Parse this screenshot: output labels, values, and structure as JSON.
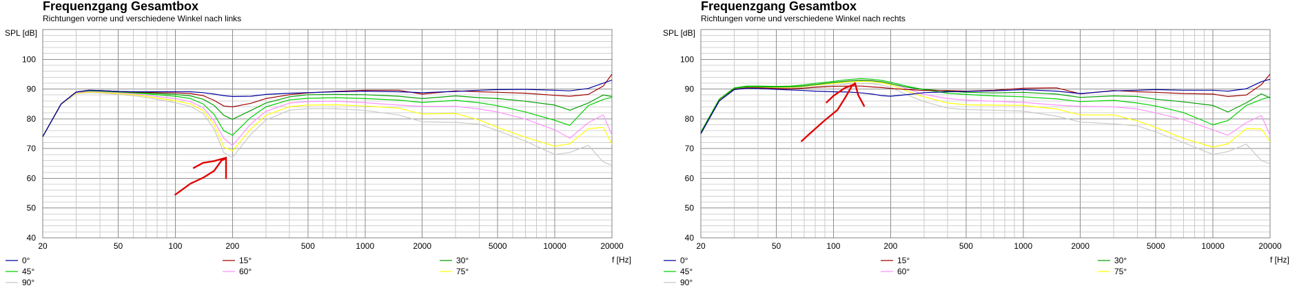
{
  "chart_data": [
    {
      "type": "line",
      "title": "Frequenzgang Gesamtbox",
      "subtitle": "Richtungen vorne und verschiedene Winkel nach links",
      "ylabel": "SPL [dB]",
      "xlabel": "f [Hz]",
      "xscale": "log",
      "xlim": [
        20,
        20000
      ],
      "ylim": [
        40,
        110
      ],
      "xticks": [
        20,
        50,
        100,
        200,
        500,
        1000,
        2000,
        5000,
        10000,
        20000
      ],
      "yticks": [
        40,
        50,
        60,
        70,
        80,
        90,
        100
      ],
      "grid": true,
      "legend_position": "bottom",
      "x": [
        20,
        25,
        30,
        35,
        40,
        50,
        60,
        70,
        80,
        100,
        120,
        140,
        160,
        180,
        200,
        250,
        300,
        400,
        500,
        700,
        1000,
        1500,
        2000,
        3000,
        4000,
        5000,
        7000,
        10000,
        12000,
        15000,
        18000,
        20000
      ],
      "series": [
        {
          "name": "0°",
          "color": "#0000a0",
          "values": [
            74,
            85,
            89,
            89.6,
            89.5,
            89.2,
            89.1,
            89.1,
            89.1,
            89.1,
            89.1,
            88.8,
            88.3,
            87.8,
            87.5,
            87.6,
            88.2,
            88.6,
            88.8,
            89.1,
            89.3,
            89.1,
            88.8,
            89.2,
            89.6,
            89.8,
            89.9,
            89.6,
            89.4,
            90.2,
            92,
            93
          ]
        },
        {
          "name": "15°",
          "color": "#a00000",
          "values": [
            74,
            85,
            89,
            89.6,
            89.5,
            89.2,
            89,
            88.9,
            88.8,
            88.7,
            88.5,
            87.8,
            86.2,
            84.3,
            84,
            85.2,
            86.8,
            88.1,
            88.7,
            89.2,
            89.6,
            89.6,
            88.3,
            89.4,
            89.1,
            88.9,
            88.6,
            87.9,
            87.6,
            88.2,
            91,
            95
          ]
        },
        {
          "name": "30°",
          "color": "#00a000",
          "values": [
            74,
            85,
            89,
            89.5,
            89.4,
            89.1,
            88.9,
            88.7,
            88.5,
            88.2,
            87.7,
            86.6,
            84.5,
            81.2,
            79.8,
            82.8,
            85.3,
            87.4,
            88.1,
            88.2,
            88.1,
            87.6,
            86.8,
            87.7,
            87.1,
            86.8,
            85.9,
            84.6,
            82.9,
            85.3,
            88,
            87.5
          ]
        },
        {
          "name": "45°",
          "color": "#00d000",
          "values": [
            74,
            85,
            89,
            89.4,
            89.3,
            89,
            88.7,
            88.4,
            88.1,
            87.6,
            86.8,
            85,
            81.5,
            76,
            74.5,
            80.5,
            84,
            86.4,
            86.9,
            87.1,
            86.8,
            86.3,
            85.5,
            86.2,
            85.4,
            84.4,
            82.3,
            79.5,
            77.8,
            84.4,
            86.5,
            87.2
          ]
        },
        {
          "name": "60°",
          "color": "#ff90ff",
          "values": [
            74,
            85,
            88.8,
            89.2,
            89.1,
            88.8,
            88.4,
            88,
            87.5,
            86.8,
            85.8,
            83.8,
            79.3,
            73.5,
            71,
            78.3,
            82.5,
            85.3,
            85.8,
            85.9,
            85.4,
            84.6,
            84.2,
            84.2,
            83.3,
            82.3,
            79.9,
            76.3,
            73.5,
            78.7,
            81.3,
            74.5
          ]
        },
        {
          "name": "75°",
          "color": "#ffff00",
          "values": [
            74,
            85,
            88.6,
            89,
            88.9,
            88.5,
            88.1,
            87.6,
            87,
            86.1,
            85,
            82.8,
            78,
            70.5,
            69.2,
            76.6,
            81.2,
            84.1,
            84.6,
            84.7,
            84.3,
            83.6,
            81.6,
            81.8,
            79.6,
            77.1,
            73.8,
            70.8,
            71.6,
            76.7,
            77.1,
            71.5
          ]
        },
        {
          "name": "90°",
          "color": "#c8c8c8",
          "values": [
            74,
            84.8,
            88.5,
            88.8,
            88.7,
            88.2,
            87.8,
            87.2,
            86.5,
            85.4,
            84.2,
            81.8,
            76.6,
            68.6,
            67,
            74.8,
            79.6,
            82.9,
            83.4,
            83.4,
            82.8,
            81.3,
            79,
            78.8,
            78.2,
            76,
            72.5,
            68,
            68.7,
            71.1,
            65.5,
            64.4
          ]
        }
      ],
      "annotation": {
        "color": "#e00000",
        "x": [
          100,
          120,
          140,
          160,
          175,
          182,
          185,
          185
        ],
        "y": [
          54.5,
          58.2,
          60.2,
          62.5,
          66,
          66.5,
          67,
          60
        ],
        "x2": [
          125,
          140,
          160,
          182
        ],
        "y2": [
          63.5,
          65.2,
          65.8,
          66.8
        ]
      }
    },
    {
      "type": "line",
      "title": "Frequenzgang Gesamtbox",
      "subtitle": "Richtungen vorne und verschiedene Winkel nach rechts",
      "ylabel": "SPL [dB]",
      "xlabel": "f [Hz]",
      "xscale": "log",
      "xlim": [
        20,
        20000
      ],
      "ylim": [
        40,
        110
      ],
      "xticks": [
        20,
        50,
        100,
        200,
        500,
        1000,
        2000,
        5000,
        10000,
        20000
      ],
      "yticks": [
        40,
        50,
        60,
        70,
        80,
        90,
        100
      ],
      "grid": true,
      "legend_position": "bottom",
      "x": [
        20,
        25,
        30,
        35,
        40,
        50,
        60,
        70,
        80,
        100,
        120,
        140,
        160,
        180,
        200,
        250,
        300,
        400,
        500,
        700,
        1000,
        1500,
        2000,
        3000,
        4000,
        5000,
        7000,
        10000,
        12000,
        15000,
        18000,
        20000
      ],
      "series": [
        {
          "name": "0°",
          "color": "#0000a0",
          "values": [
            75,
            86,
            89.8,
            90.3,
            90.2,
            89.9,
            89.7,
            89.5,
            89.3,
            89.1,
            89,
            88.7,
            88.3,
            87.8,
            87.6,
            88.2,
            88.8,
            89.1,
            89.2,
            89.4,
            89.8,
            89.3,
            88.5,
            89.4,
            89.6,
            89.8,
            89.6,
            89.6,
            89.3,
            90.1,
            92.5,
            93.3
          ]
        },
        {
          "name": "15°",
          "color": "#a00000",
          "values": [
            75,
            86,
            89.9,
            90.4,
            90.4,
            90.2,
            90.1,
            90.3,
            90.6,
            90.9,
            91,
            91,
            90.7,
            90.5,
            90.2,
            89.8,
            89.5,
            89.5,
            89.3,
            89.6,
            90.3,
            90.4,
            88.4,
            89.5,
            89.1,
            88.9,
            88.5,
            88.3,
            87.5,
            88,
            91.5,
            95
          ]
        },
        {
          "name": "30°",
          "color": "#00a000",
          "values": [
            75.5,
            86.5,
            90.2,
            90.8,
            90.8,
            90.7,
            90.8,
            91,
            91.5,
            92.2,
            92.7,
            92.9,
            92.8,
            92.4,
            91.8,
            90.5,
            89.9,
            89.3,
            88.9,
            88.7,
            88.9,
            88.3,
            87.2,
            87.7,
            87.5,
            86.6,
            85.7,
            84.5,
            82.3,
            85.4,
            88.4,
            87
          ]
        },
        {
          "name": "45°",
          "color": "#00d000",
          "values": [
            75.5,
            86.6,
            90.4,
            91,
            91,
            90.9,
            91,
            91.4,
            91.9,
            92.6,
            93.2,
            93.5,
            93.3,
            92.9,
            92.3,
            90.8,
            89.8,
            88.6,
            88.2,
            87.7,
            87.4,
            86.7,
            85.8,
            86.2,
            85.3,
            84.3,
            82.1,
            78,
            79.4,
            84.5,
            86.5,
            87.4
          ]
        },
        {
          "name": "60°",
          "color": "#ff90ff",
          "values": [
            75.2,
            86.5,
            90.3,
            90.9,
            90.9,
            90.8,
            90.8,
            91.1,
            91.5,
            92.2,
            92.8,
            93,
            92.9,
            92.5,
            91.9,
            89.9,
            88.2,
            86.8,
            86.3,
            85.9,
            85.5,
            84.6,
            84.2,
            84,
            83.3,
            82,
            79.7,
            76.3,
            74.5,
            78.7,
            81.1,
            74.5
          ]
        },
        {
          "name": "75°",
          "color": "#ffff00",
          "values": [
            75,
            86.4,
            90.2,
            90.7,
            90.7,
            90.6,
            90.6,
            90.9,
            91.3,
            91.9,
            92.4,
            92.6,
            92.5,
            92.1,
            91.5,
            89.1,
            87.4,
            85.3,
            84.7,
            84.6,
            84.5,
            83.3,
            81.3,
            81.3,
            79.3,
            77.1,
            73.4,
            70.5,
            71.6,
            76.7,
            76.6,
            72.3
          ]
        },
        {
          "name": "90°",
          "color": "#c8c8c8",
          "values": [
            74.8,
            86.3,
            90,
            90.5,
            90.5,
            90.3,
            90.3,
            90.5,
            90.8,
            91.3,
            91.7,
            91.9,
            91.8,
            91.3,
            90.6,
            87.8,
            85.8,
            83.6,
            83.1,
            82.9,
            82.6,
            80.9,
            78.9,
            78.3,
            77.6,
            75.6,
            72,
            68,
            69,
            71.5,
            66,
            64.9
          ]
        }
      ],
      "annotation": {
        "color": "#e00000",
        "x": [
          68,
          75,
          90,
          105,
          115,
          125,
          130,
          135,
          145
        ],
        "y": [
          72.5,
          75,
          79.5,
          83,
          87,
          91,
          92,
          88,
          84.3
        ],
        "x2": [
          92,
          100,
          115,
          128
        ],
        "y2": [
          85.5,
          87.7,
          90.4,
          91.5
        ]
      }
    }
  ]
}
